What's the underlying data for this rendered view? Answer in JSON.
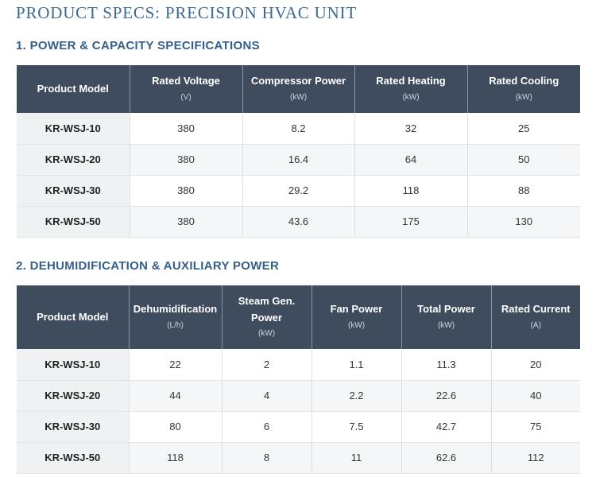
{
  "page_title": "PRODUCT SPECS: PRECISION HVAC UNIT",
  "section1": {
    "title": "1. POWER & CAPACITY SPECIFICATIONS",
    "headers": [
      {
        "label": "Product Model",
        "unit": ""
      },
      {
        "label": "Rated Voltage",
        "unit": "(V)"
      },
      {
        "label": "Compressor Power",
        "unit": "(kW)"
      },
      {
        "label": "Rated Heating",
        "unit": "(kW)"
      },
      {
        "label": "Rated Cooling",
        "unit": "(kW)"
      }
    ],
    "rows": [
      [
        "KR-WSJ-10",
        "380",
        "8.2",
        "32",
        "25"
      ],
      [
        "KR-WSJ-20",
        "380",
        "16.4",
        "64",
        "50"
      ],
      [
        "KR-WSJ-30",
        "380",
        "29.2",
        "118",
        "88"
      ],
      [
        "KR-WSJ-50",
        "380",
        "43.6",
        "175",
        "130"
      ]
    ]
  },
  "section2": {
    "title": "2. DEHUMIDIFICATION & AUXILIARY POWER",
    "headers": [
      {
        "label": "Product Model",
        "unit": ""
      },
      {
        "label": "Dehumidification",
        "unit": "(L/h)"
      },
      {
        "label": "Steam Gen. Power",
        "unit": "(kW)"
      },
      {
        "label": "Fan Power",
        "unit": "(kW)"
      },
      {
        "label": "Total Power",
        "unit": "(kW)"
      },
      {
        "label": "Rated Current",
        "unit": "(A)"
      }
    ],
    "rows": [
      [
        "KR-WSJ-10",
        "22",
        "2",
        "1.1",
        "11.3",
        "20"
      ],
      [
        "KR-WSJ-20",
        "44",
        "4",
        "2.2",
        "22.6",
        "40"
      ],
      [
        "KR-WSJ-30",
        "80",
        "6",
        "7.5",
        "42.7",
        "75"
      ],
      [
        "KR-WSJ-50",
        "118",
        "8",
        "11",
        "62.6",
        "112"
      ]
    ]
  }
}
